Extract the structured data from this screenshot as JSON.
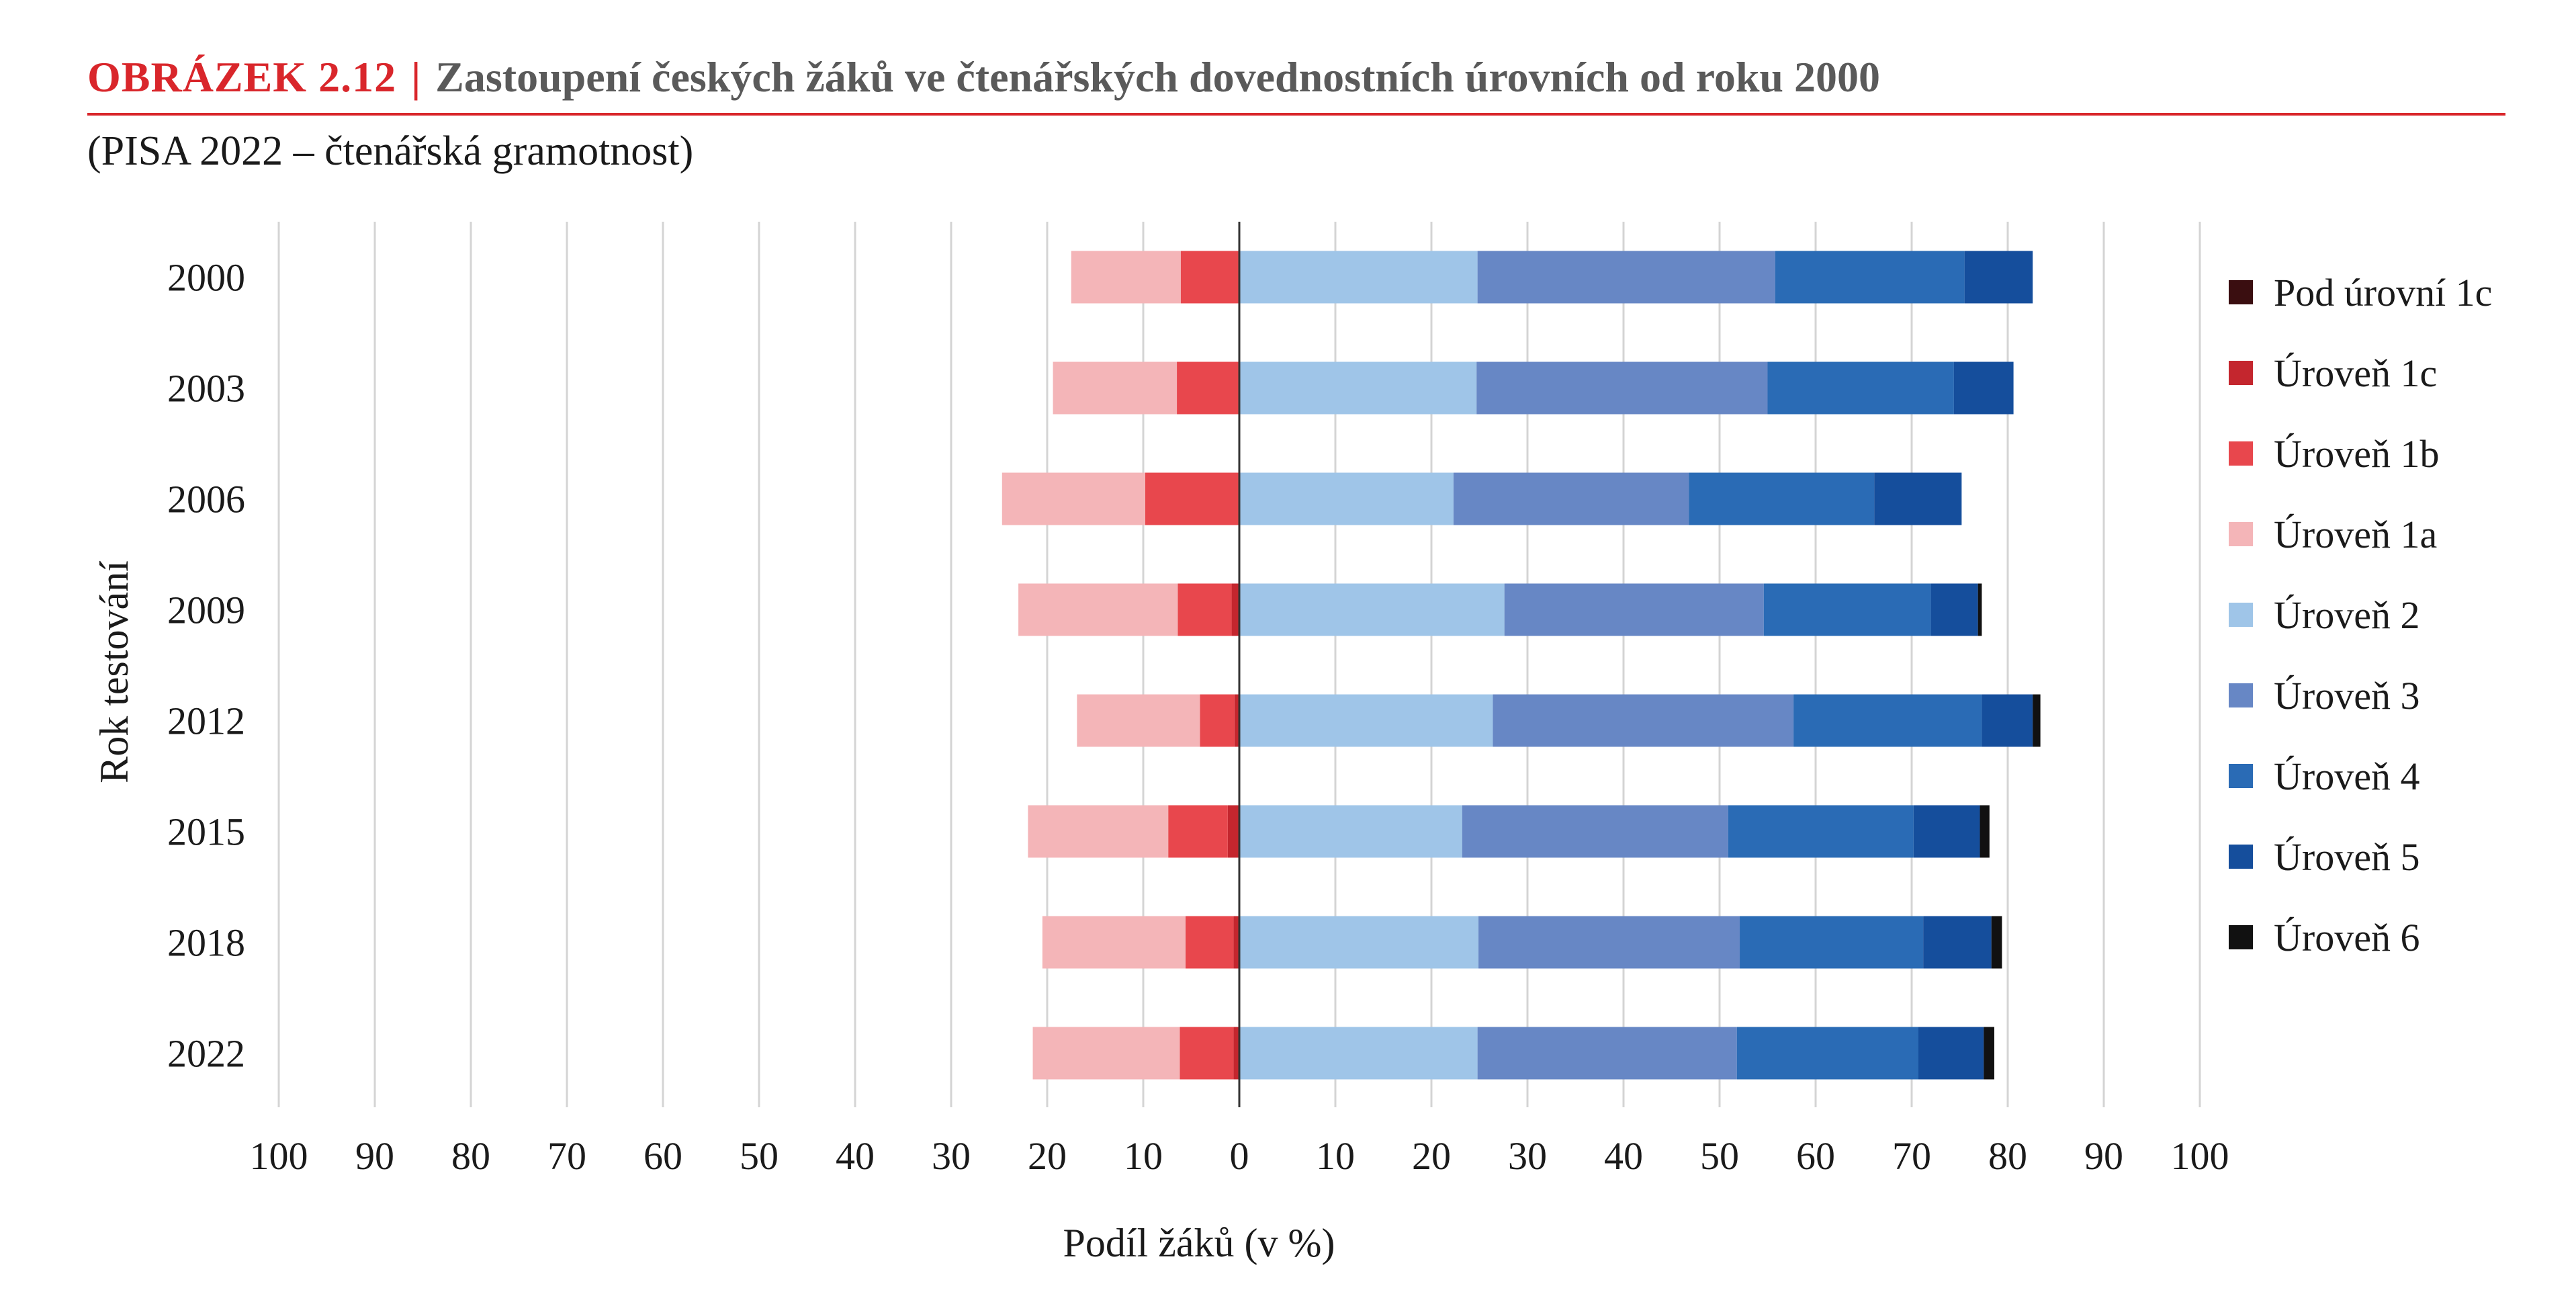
{
  "header": {
    "figure_label": "OBRÁZEK 2.12",
    "separator": "|",
    "title": "Zastoupení českých žáků ve čtenářských dovednostních úrovních od roku 2000",
    "subtitle": "(PISA 2022 – čtenářská gramotnost)"
  },
  "chart_data": {
    "type": "bar",
    "orientation": "horizontal",
    "stacked": "diverging",
    "xlabel": "Podíl žáků (v %)",
    "ylabel": "Rok testování",
    "xlim": [
      -100,
      100
    ],
    "x_ticks": [
      "100",
      "90",
      "80",
      "70",
      "60",
      "50",
      "40",
      "30",
      "20",
      "10",
      "0",
      "10",
      "20",
      "30",
      "40",
      "50",
      "60",
      "70",
      "80",
      "90",
      "100"
    ],
    "grid": true,
    "legend_position": "right",
    "categories": [
      "2000",
      "2003",
      "2006",
      "2009",
      "2012",
      "2015",
      "2018",
      "2022"
    ],
    "series": [
      {
        "name": "Pod úrovní 1c",
        "side": "left",
        "color": "#3a0e10",
        "values": [
          0,
          0,
          0,
          0,
          0,
          0,
          0,
          0
        ]
      },
      {
        "name": "Úroveň 1c",
        "side": "left",
        "color": "#c4262e",
        "values": [
          0,
          0,
          0,
          0.8,
          0.5,
          1.2,
          0.6,
          0.6
        ]
      },
      {
        "name": "Úroveň 1b",
        "side": "left",
        "color": "#e8474d",
        "values": [
          6.1,
          6.5,
          9.8,
          5.6,
          3.6,
          6.2,
          5.0,
          5.6
        ]
      },
      {
        "name": "Úroveň 1a",
        "side": "left",
        "color": "#f4b5b8",
        "values": [
          11.4,
          12.9,
          14.9,
          16.6,
          12.8,
          14.6,
          14.9,
          15.3
        ]
      },
      {
        "name": "Úroveň 2",
        "side": "right",
        "color": "#9fc5e8",
        "values": [
          24.8,
          24.7,
          22.3,
          27.6,
          26.4,
          23.2,
          24.9,
          24.8
        ]
      },
      {
        "name": "Úroveň 3",
        "side": "right",
        "color": "#6787c5",
        "values": [
          31.0,
          30.3,
          24.5,
          27.0,
          31.3,
          27.7,
          27.2,
          27.0
        ]
      },
      {
        "name": "Úroveň 4",
        "side": "right",
        "color": "#2a6bb5",
        "values": [
          19.7,
          19.4,
          19.3,
          17.4,
          19.6,
          19.3,
          19.1,
          18.9
        ]
      },
      {
        "name": "Úroveň 5",
        "side": "right",
        "color": "#154e9c",
        "values": [
          7.1,
          6.2,
          9.1,
          4.9,
          5.3,
          6.9,
          7.1,
          6.8
        ]
      },
      {
        "name": "Úroveň 6",
        "side": "right",
        "color": "#111111",
        "values": [
          0,
          0,
          0,
          0.4,
          0.8,
          1.0,
          1.1,
          1.1
        ]
      }
    ]
  }
}
